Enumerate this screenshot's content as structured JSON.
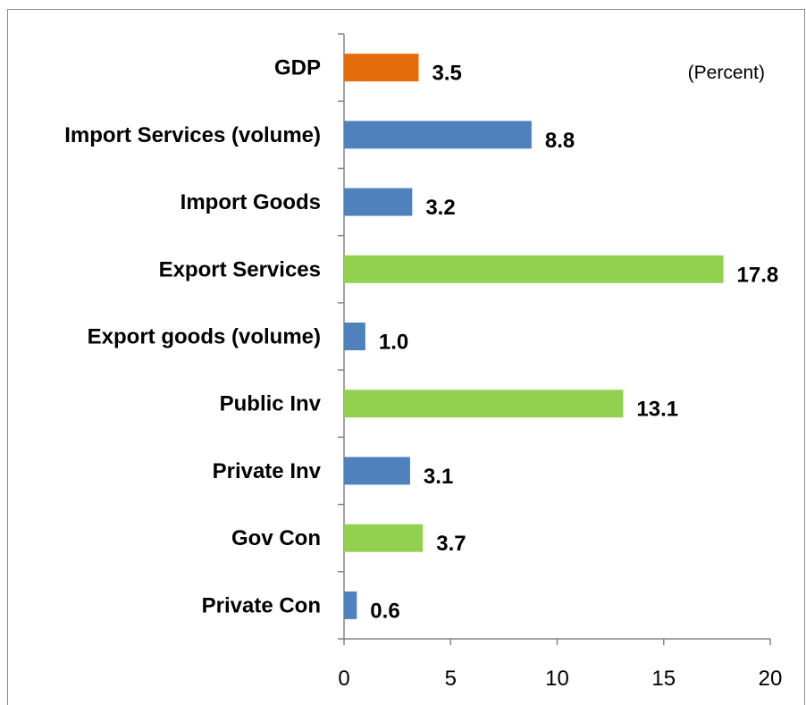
{
  "chart_data": {
    "type": "bar",
    "orientation": "horizontal",
    "unit_label": "(Percent)",
    "categories": [
      "GDP",
      "Import Services (volume)",
      "Import Goods",
      "Export Services",
      "Export goods (volume)",
      "Public Inv",
      "Private Inv",
      "Gov Con",
      "Private Con"
    ],
    "values": [
      3.5,
      8.8,
      3.2,
      17.8,
      1.0,
      13.1,
      3.1,
      3.7,
      0.6
    ],
    "value_labels": [
      "3.5",
      "8.8",
      "3.2",
      "17.8",
      "1.0",
      "13.1",
      "3.1",
      "3.7",
      "0.6"
    ],
    "bar_colors": [
      "#E46C0A",
      "#4F81BD",
      "#4F81BD",
      "#92D050",
      "#4F81BD",
      "#92D050",
      "#4F81BD",
      "#92D050",
      "#4F81BD"
    ],
    "xlim": [
      0,
      20
    ],
    "xticks": [
      "0",
      "5",
      "10",
      "15",
      "20"
    ],
    "xtick_values": [
      0,
      5,
      10,
      15,
      20
    ],
    "grid": false,
    "legend": "none"
  }
}
